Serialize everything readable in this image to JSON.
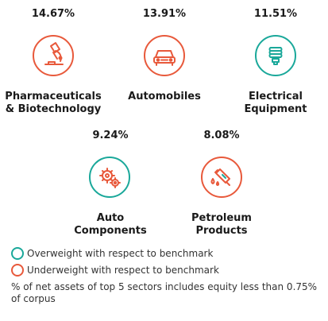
{
  "colors": {
    "overweight": "#1aa89a",
    "underweight": "#e8593b",
    "text": "#1a1a1a"
  },
  "chart_data": {
    "type": "table",
    "categories": [
      "Pharmaceuticals & Biotechnology",
      "Automobiles",
      "Electrical Equipment",
      "Auto Components",
      "Petroleum Products"
    ],
    "values": [
      14.67,
      13.91,
      11.51,
      9.24,
      8.08
    ],
    "sectors": [
      {
        "pct": "14.67%",
        "name_line1": "Pharmaceuticals",
        "name_line2": "& Biotechnology",
        "weight": "underweight",
        "icon": "microscope-icon"
      },
      {
        "pct": "13.91%",
        "name_line1": "Automobiles",
        "name_line2": "",
        "weight": "underweight",
        "icon": "car-icon"
      },
      {
        "pct": "11.51%",
        "name_line1": "Electrical",
        "name_line2": "Equipment",
        "weight": "overweight",
        "icon": "bulb-icon"
      },
      {
        "pct": "9.24%",
        "name_line1": "Auto",
        "name_line2": "Components",
        "weight": "overweight",
        "icon": "gear-icon"
      },
      {
        "pct": "8.08%",
        "name_line1": "Petroleum",
        "name_line2": "Products",
        "weight": "underweight",
        "icon": "fuel-nozzle-icon"
      }
    ],
    "legend": [
      {
        "label": "Overweight with respect to benchmark",
        "weight": "overweight"
      },
      {
        "label": "Underweight with respect to benchmark",
        "weight": "underweight"
      }
    ],
    "footnote": "% of net assets of top 5 sectors includes equity less than 0.75% of corpus"
  }
}
